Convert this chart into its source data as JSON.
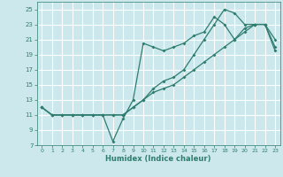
{
  "xlabel": "Humidex (Indice chaleur)",
  "bg_color": "#cce8ec",
  "grid_color": "#ffffff",
  "line_color": "#2e7d6e",
  "xlim": [
    -0.5,
    23.5
  ],
  "ylim": [
    7,
    26
  ],
  "xticks": [
    0,
    1,
    2,
    3,
    4,
    5,
    6,
    7,
    8,
    9,
    10,
    11,
    12,
    13,
    14,
    15,
    16,
    17,
    18,
    19,
    20,
    21,
    22,
    23
  ],
  "yticks": [
    7,
    9,
    11,
    13,
    15,
    17,
    19,
    21,
    23,
    25
  ],
  "series1_y": [
    12,
    11,
    11,
    11,
    11,
    11,
    11,
    7.5,
    10.5,
    13,
    20.5,
    20,
    19.5,
    20,
    20.5,
    21.5,
    22,
    24,
    23,
    21,
    22.5,
    23,
    23,
    19.5
  ],
  "series2_y": [
    12,
    11,
    11,
    11,
    11,
    11,
    11,
    11,
    11,
    12,
    13,
    14,
    14.5,
    15,
    16,
    17,
    18,
    19,
    20,
    21,
    22,
    23,
    23,
    20
  ],
  "series3_y": [
    12,
    11,
    11,
    11,
    11,
    11,
    11,
    11,
    11,
    12,
    13,
    14.5,
    15.5,
    16,
    17,
    19,
    21,
    23,
    25,
    24.5,
    23,
    23,
    23,
    21
  ]
}
